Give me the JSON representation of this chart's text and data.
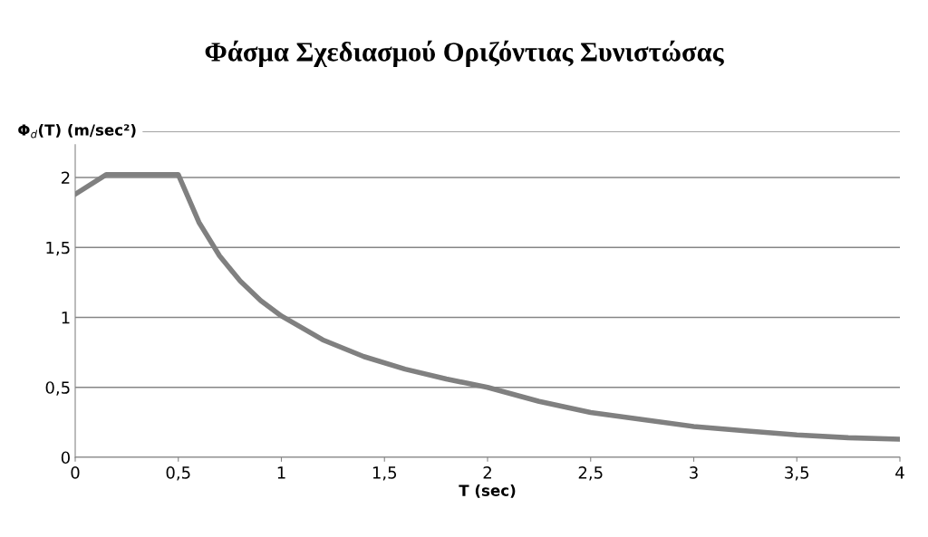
{
  "chart_data": {
    "type": "line",
    "title": "Φάσμα Σχεδιασμού Οριζόντιας Συνιστώσας",
    "xlabel": "T (sec)",
    "ylabel": "Φ$_{d}$(T) (m/sec²)",
    "x": [
      0,
      0.15,
      0.5,
      0.6,
      0.7,
      0.8,
      0.9,
      1,
      1.2,
      1.4,
      1.6,
      1.8,
      2,
      2.25,
      2.5,
      2.75,
      3,
      3.25,
      3.5,
      3.75,
      4
    ],
    "series": [
      {
        "color": "#808080",
        "values": [
          1.88,
          2.02,
          2.02,
          1.68,
          1.44,
          1.26,
          1.12,
          1.01,
          0.84,
          0.72,
          0.63,
          0.56,
          0.5,
          0.4,
          0.32,
          0.27,
          0.22,
          0.19,
          0.16,
          0.14,
          0.13
        ]
      }
    ],
    "xlim": [
      0,
      4
    ],
    "xticks": [
      0,
      {
        "value": 0.5,
        "label": "0,5"
      },
      1,
      {
        "value": 1.5,
        "label": "1,5"
      },
      2,
      {
        "value": 2.5,
        "label": "2,5"
      },
      3,
      {
        "value": 3.5,
        "label": "3,5"
      },
      4
    ],
    "ylim": [
      0,
      2.33
    ],
    "yticks": [
      0,
      {
        "value": 0.5,
        "label": "0,5"
      },
      1,
      {
        "value": 1.5,
        "label": "1,5"
      },
      2,
      {
        "value": 2.33,
        "label": null
      }
    ],
    "grid": "y",
    "legend": false,
    "marker": "none",
    "line_style": "solid"
  }
}
